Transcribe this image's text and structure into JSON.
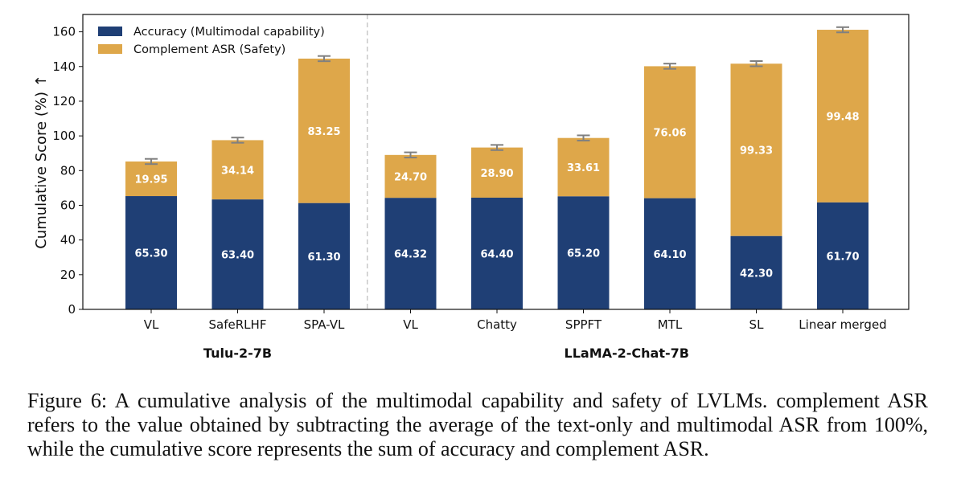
{
  "chart_data": {
    "type": "bar",
    "stacked": true,
    "ylabel": "Cumulative Score (%) ↑",
    "ylim": [
      0,
      170
    ],
    "yticks": [
      0,
      20,
      40,
      60,
      80,
      100,
      120,
      140,
      160
    ],
    "categories": [
      "VL",
      "SafeRLHF",
      "SPA-VL",
      "VL",
      "Chatty",
      "SPPFT",
      "MTL",
      "SL",
      "Linear merged"
    ],
    "groups": [
      {
        "name": "Tulu-2-7B",
        "start": 0,
        "end": 2
      },
      {
        "name": "LLaMA-2-Chat-7B",
        "start": 3,
        "end": 8
      }
    ],
    "series": [
      {
        "name": "Accuracy (Multimodal capability)",
        "color": "#1f3f75",
        "values": [
          65.3,
          63.4,
          61.3,
          64.32,
          64.4,
          65.2,
          64.1,
          42.3,
          61.7
        ]
      },
      {
        "name": "Complement ASR (Safety)",
        "color": "#dea74a",
        "values": [
          19.95,
          34.14,
          83.25,
          24.7,
          28.9,
          33.61,
          76.06,
          99.33,
          99.48
        ]
      }
    ],
    "error": [
      1.5,
      1.5,
      1.5,
      1.5,
      1.5,
      1.5,
      1.5,
      1.5,
      1.5
    ],
    "legend_position": "top-left",
    "grid": false
  },
  "caption": "Figure 6: A cumulative analysis of the multimodal capability and safety of LVLMs. complement ASR refers to the value obtained by subtracting the average of the text-only and multimodal ASR from 100%, while the cumulative score represents the sum of accuracy and complement ASR."
}
